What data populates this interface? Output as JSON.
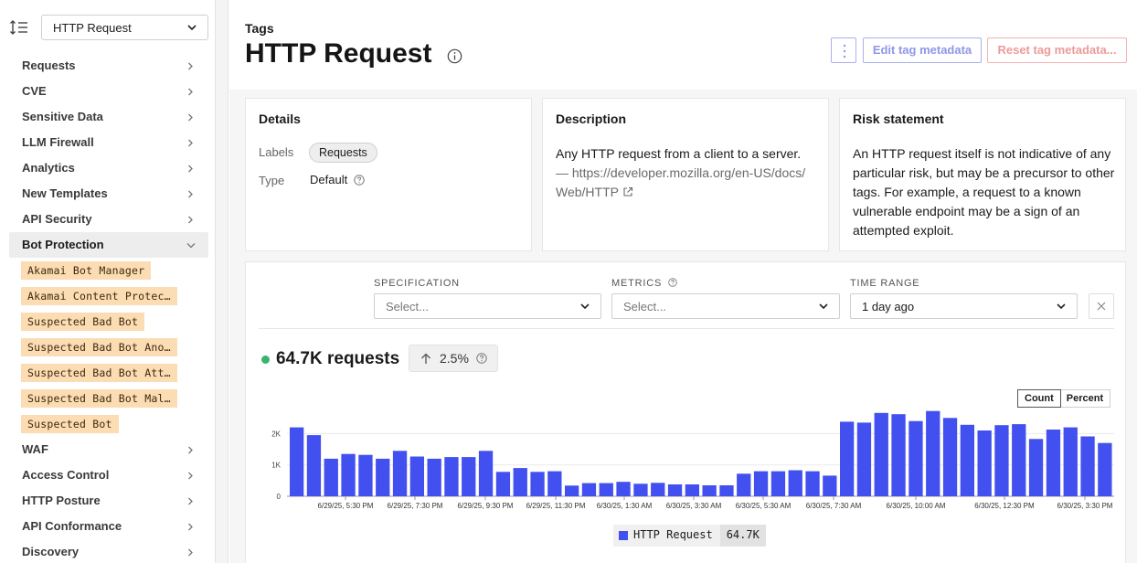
{
  "sidebar": {
    "selector_value": "HTTP Request",
    "items": [
      {
        "label": "Requests"
      },
      {
        "label": "CVE"
      },
      {
        "label": "Sensitive Data"
      },
      {
        "label": "LLM Firewall"
      },
      {
        "label": "Analytics"
      },
      {
        "label": "New Templates"
      },
      {
        "label": "API Security"
      },
      {
        "label": "Bot Protection"
      },
      {
        "label": "WAF"
      },
      {
        "label": "Access Control"
      },
      {
        "label": "HTTP Posture"
      },
      {
        "label": "API Conformance"
      },
      {
        "label": "Discovery"
      }
    ],
    "bot_sub_items": [
      "Akamai Bot Manager",
      "Akamai Content Protec…",
      "Suspected Bad Bot",
      "Suspected Bad Bot Ano…",
      "Suspected Bad Bot Att…",
      "Suspected Bad Bot Mal…",
      "Suspected Bot"
    ]
  },
  "header": {
    "breadcrumb": "Tags",
    "title": "HTTP Request",
    "edit_label": "Edit tag metadata",
    "reset_label": "Reset tag metadata..."
  },
  "details": {
    "title": "Details",
    "labels_key": "Labels",
    "labels_value": "Requests",
    "type_key": "Type",
    "type_value": "Default"
  },
  "description": {
    "title": "Description",
    "text": "Any HTTP request from a client to a server.",
    "link_line1": "— https://developer.mozilla.org/en-US/docs/",
    "link_line2": "Web/HTTP"
  },
  "risk": {
    "title": "Risk statement",
    "text": "An HTTP request itself is not indicative of any particular risk, but may be a precursor to other tags. For example, a request to a known vulnerable endpoint may be a sign of an attempted exploit."
  },
  "filters": {
    "specification_label": "SPECIFICATION",
    "specification_placeholder": "Select...",
    "metrics_label": "METRICS",
    "metrics_placeholder": "Select...",
    "time_range_label": "TIME RANGE",
    "time_range_value": "1 day ago"
  },
  "summary": {
    "total": "64.7K requests",
    "delta": "2.5%",
    "count_label": "Count",
    "percent_label": "Percent"
  },
  "legend": {
    "name": "HTTP Request",
    "value": "64.7K"
  },
  "colors": {
    "bar": "#4150ef",
    "status_dot": "#3bb36e",
    "tag_bg": "#fbdcb3"
  },
  "chart_data": {
    "type": "bar",
    "y_ticks": [
      "2K",
      "1K",
      "0"
    ],
    "ylim": [
      0,
      2800
    ],
    "x_tick_labels": [
      "6/29/25, 5:30 PM",
      "6/29/25, 7:30 PM",
      "6/29/25, 9:30 PM",
      "6/29/25, 11:30 PM",
      "6/30/25, 1:30 AM",
      "6/30/25, 3:30 AM",
      "6/30/25, 5:30 AM",
      "6/30/25, 7:30 AM",
      "6/30/25, 10:00 AM",
      "6/30/25, 12:30 PM",
      "6/30/25, 3:30 PM"
    ],
    "series": [
      {
        "values": [
          2200,
          1950,
          1200,
          1350,
          1320,
          1200,
          1450,
          1270,
          1200,
          1250,
          1250,
          1450,
          780,
          900,
          780,
          800,
          340,
          420,
          420,
          460,
          400,
          430,
          380,
          380,
          350,
          350,
          720,
          800,
          800,
          830,
          800,
          660,
          2380,
          2350,
          2660,
          2620,
          2400,
          2720,
          2500,
          2280,
          2100,
          2270,
          2300,
          1830,
          2130,
          2200,
          1910,
          1700
        ]
      }
    ]
  }
}
